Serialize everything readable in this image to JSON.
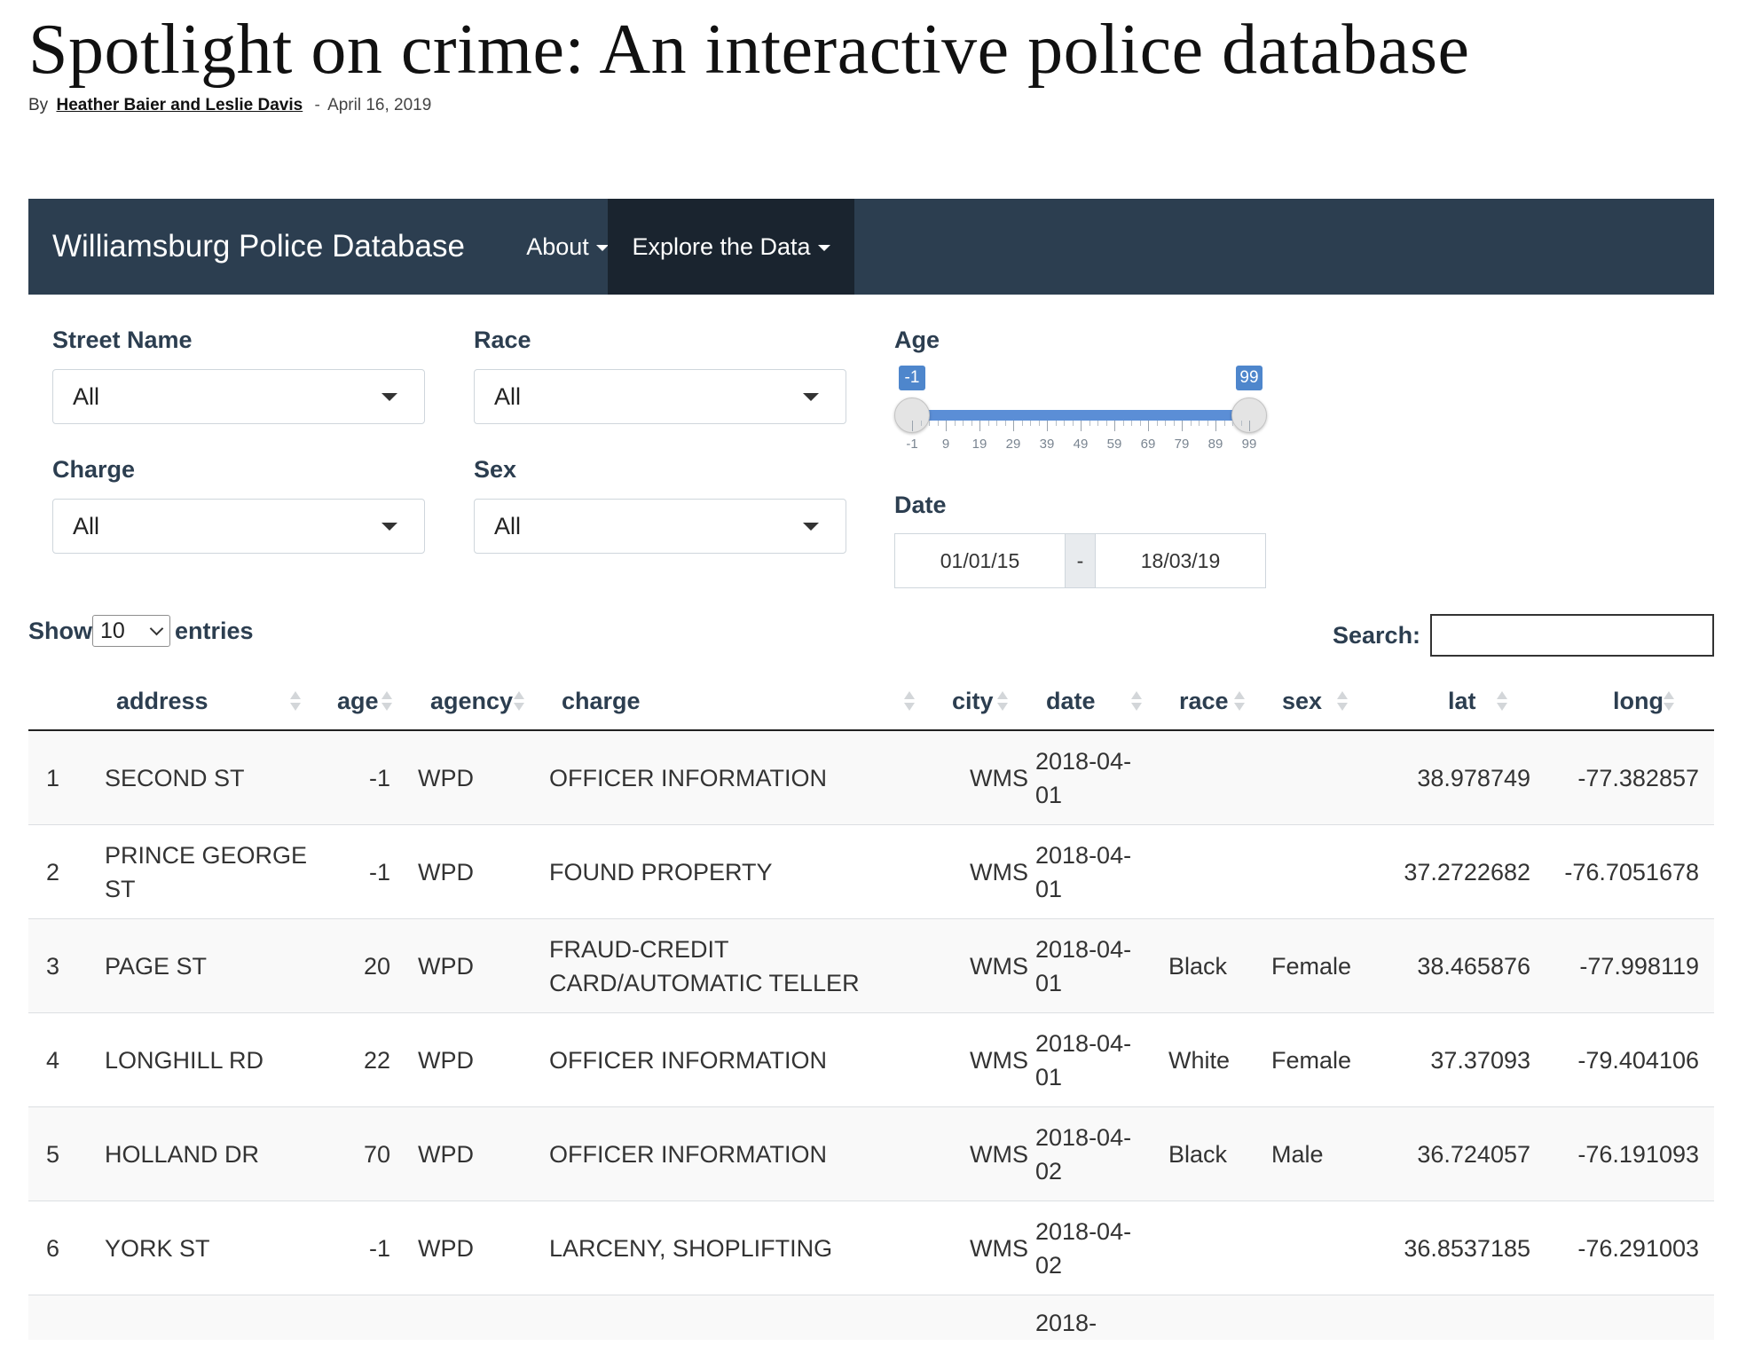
{
  "article": {
    "title": "Spotlight on crime: An interactive police database",
    "by": "By",
    "authors": "Heather Baier and Leslie Davis",
    "separator": "-",
    "date": "April 16, 2019"
  },
  "navbar": {
    "brand": "Williamsburg Police Database",
    "items": [
      {
        "label": "About"
      },
      {
        "label": "Explore the Data",
        "active": true
      }
    ]
  },
  "filters": {
    "street": {
      "label": "Street Name",
      "value": "All"
    },
    "race": {
      "label": "Race",
      "value": "All"
    },
    "charge": {
      "label": "Charge",
      "value": "All"
    },
    "sex": {
      "label": "Sex",
      "value": "All"
    },
    "age": {
      "label": "Age",
      "min": -1,
      "max": 99,
      "low": -1,
      "high": 99,
      "low_label": "-1",
      "high_label": "99",
      "ticks": [
        "-1",
        "9",
        "19",
        "29",
        "39",
        "49",
        "59",
        "69",
        "79",
        "89",
        "99"
      ]
    },
    "date": {
      "label": "Date",
      "from": "01/01/15",
      "separator": "-",
      "to": "18/03/19"
    }
  },
  "table_controls": {
    "show_label": "Show",
    "length_value": "10",
    "entries_label": "entries",
    "search_label": "Search:",
    "search_value": ""
  },
  "table": {
    "columns": [
      "address",
      "age",
      "agency",
      "charge",
      "city",
      "date",
      "race",
      "sex",
      "lat",
      "long"
    ],
    "rows": [
      {
        "n": "1",
        "address": "SECOND ST",
        "age": "-1",
        "agency": "WPD",
        "charge": "OFFICER INFORMATION",
        "city": "WMS",
        "date": "2018-04-01",
        "race": "",
        "sex": "",
        "lat": "38.978749",
        "long": "-77.382857"
      },
      {
        "n": "2",
        "address": "PRINCE GEORGE ST",
        "age": "-1",
        "agency": "WPD",
        "charge": "FOUND PROPERTY",
        "city": "WMS",
        "date": "2018-04-01",
        "race": "",
        "sex": "",
        "lat": "37.2722682",
        "long": "-76.7051678"
      },
      {
        "n": "3",
        "address": "PAGE ST",
        "age": "20",
        "agency": "WPD",
        "charge": "FRAUD-CREDIT CARD/AUTOMATIC TELLER",
        "city": "WMS",
        "date": "2018-04-01",
        "race": "Black",
        "sex": "Female",
        "lat": "38.465876",
        "long": "-77.998119"
      },
      {
        "n": "4",
        "address": "LONGHILL RD",
        "age": "22",
        "agency": "WPD",
        "charge": "OFFICER INFORMATION",
        "city": "WMS",
        "date": "2018-04-01",
        "race": "White",
        "sex": "Female",
        "lat": "37.37093",
        "long": "-79.404106"
      },
      {
        "n": "5",
        "address": "HOLLAND DR",
        "age": "70",
        "agency": "WPD",
        "charge": "OFFICER INFORMATION",
        "city": "WMS",
        "date": "2018-04-02",
        "race": "Black",
        "sex": "Male",
        "lat": "36.724057",
        "long": "-76.191093"
      },
      {
        "n": "6",
        "address": "YORK ST",
        "age": "-1",
        "agency": "WPD",
        "charge": "LARCENY, SHOPLIFTING",
        "city": "WMS",
        "date": "2018-04-02",
        "race": "",
        "sex": "",
        "lat": "36.8537185",
        "long": "-76.291003"
      },
      {
        "n": "",
        "address": "",
        "age": "",
        "agency": "",
        "charge": "",
        "city": "",
        "date": "2018-",
        "race": "",
        "sex": "",
        "lat": "",
        "long": ""
      }
    ]
  }
}
